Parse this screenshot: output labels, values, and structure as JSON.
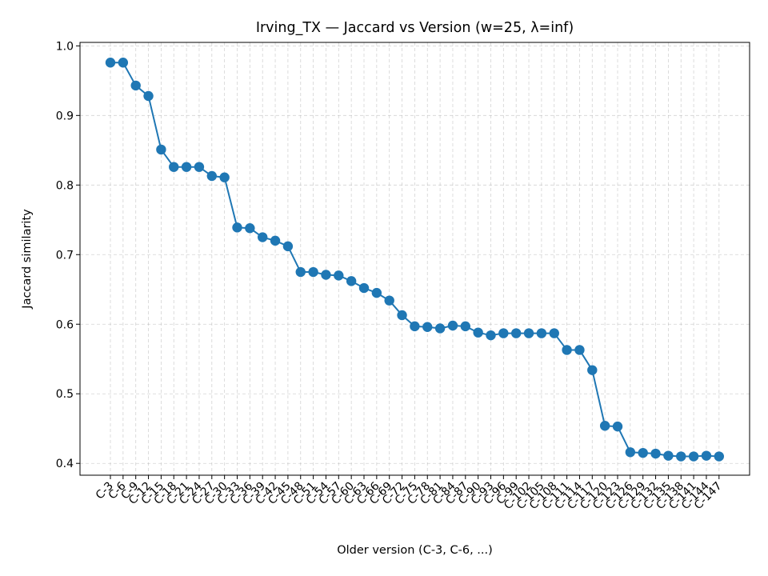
{
  "chart_data": {
    "type": "line",
    "title": "Irving_TX — Jaccard vs Version (w=25, λ=inf)",
    "xlabel": "Older version (C-3, C-6, ...)",
    "ylabel": "Jaccard similarity",
    "ylim": [
      0.383,
      1.005
    ],
    "yticks": [
      "0.4",
      "0.5",
      "0.6",
      "0.7",
      "0.8",
      "0.9",
      "1.0"
    ],
    "grid": true,
    "line_color": "#1f77b4",
    "categories": [
      "C-3",
      "C-6",
      "C-9",
      "C-12",
      "C-15",
      "C-18",
      "C-21",
      "C-24",
      "C-27",
      "C-30",
      "C-33",
      "C-36",
      "C-39",
      "C-42",
      "C-45",
      "C-48",
      "C-51",
      "C-54",
      "C-57",
      "C-60",
      "C-63",
      "C-66",
      "C-69",
      "C-72",
      "C-75",
      "C-78",
      "C-81",
      "C-84",
      "C-87",
      "C-90",
      "C-93",
      "C-96",
      "C-99",
      "C-102",
      "C-105",
      "C-108",
      "C-111",
      "C-114",
      "C-117",
      "C-120",
      "C-123",
      "C-126",
      "C-129",
      "C-132",
      "C-135",
      "C-138",
      "C-141",
      "C-144",
      "C-147"
    ],
    "values": [
      0.976,
      0.976,
      0.943,
      0.928,
      0.851,
      0.826,
      0.826,
      0.826,
      0.813,
      0.811,
      0.739,
      0.738,
      0.725,
      0.72,
      0.712,
      0.675,
      0.675,
      0.671,
      0.67,
      0.662,
      0.652,
      0.645,
      0.634,
      0.613,
      0.597,
      0.596,
      0.594,
      0.598,
      0.597,
      0.588,
      0.584,
      0.587,
      0.587,
      0.587,
      0.587,
      0.587,
      0.563,
      0.563,
      0.534,
      0.454,
      0.453,
      0.416,
      0.415,
      0.414,
      0.411,
      0.41,
      0.41,
      0.411,
      0.41
    ]
  }
}
